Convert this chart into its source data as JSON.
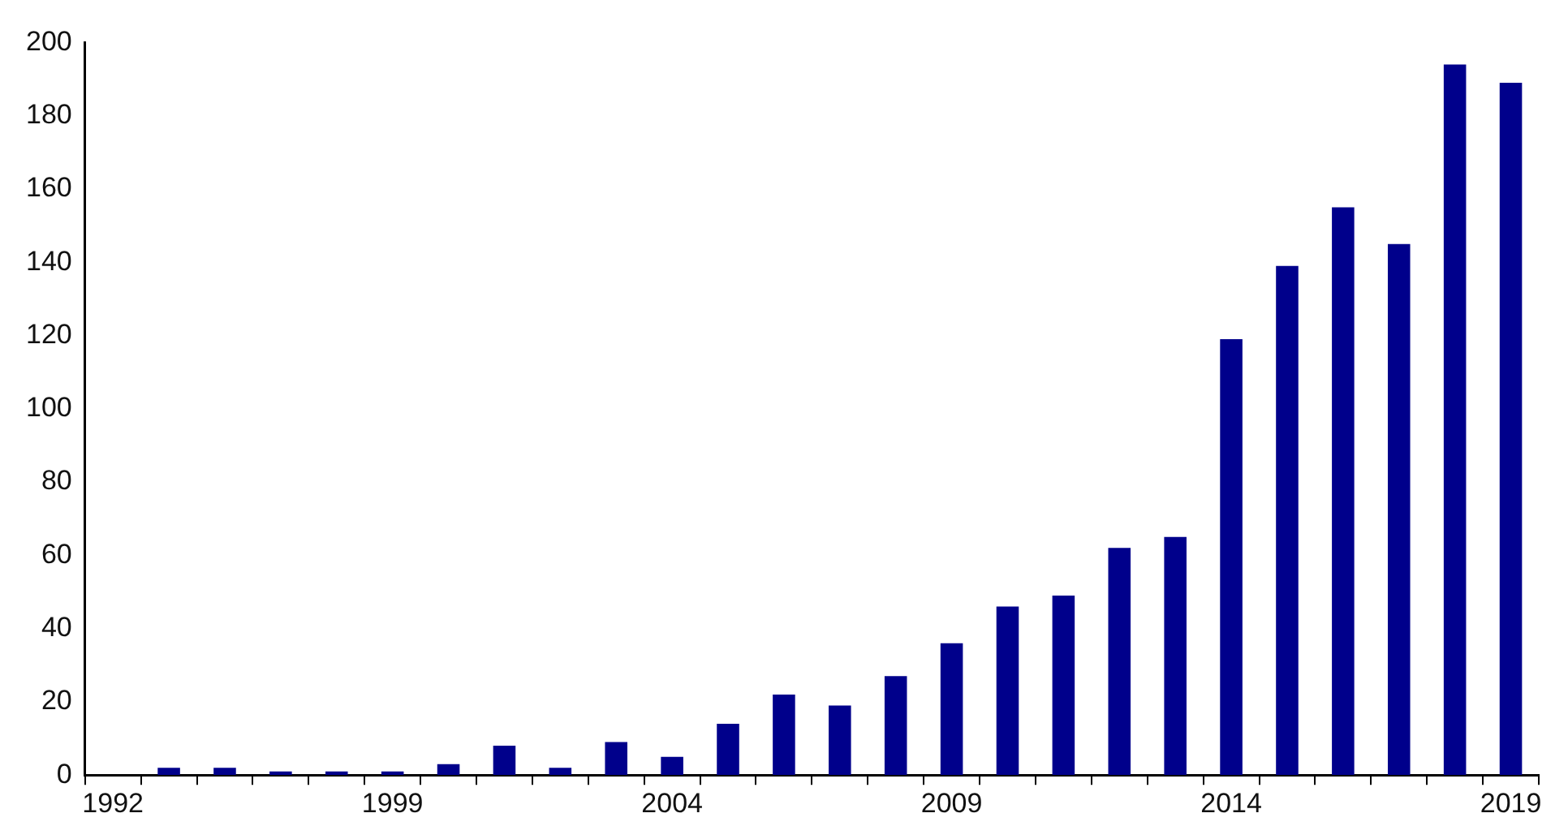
{
  "chart_data": {
    "type": "bar",
    "categories": [
      "1992",
      null,
      null,
      null,
      null,
      "1999",
      null,
      null,
      null,
      null,
      "2004",
      null,
      null,
      null,
      null,
      "2009",
      null,
      null,
      null,
      null,
      "2014",
      null,
      null,
      null,
      null,
      "2019"
    ],
    "values": [
      null,
      2,
      2,
      1,
      1,
      1,
      3,
      8,
      2,
      9,
      5,
      14,
      22,
      19,
      27,
      36,
      46,
      49,
      62,
      65,
      119,
      139,
      155,
      145,
      194,
      189
    ],
    "color": "#00008b",
    "ylim": [
      0,
      200
    ],
    "yticks": [
      0,
      20,
      40,
      60,
      80,
      100,
      120,
      140,
      160,
      180,
      200
    ],
    "grid": false,
    "legend": false
  }
}
